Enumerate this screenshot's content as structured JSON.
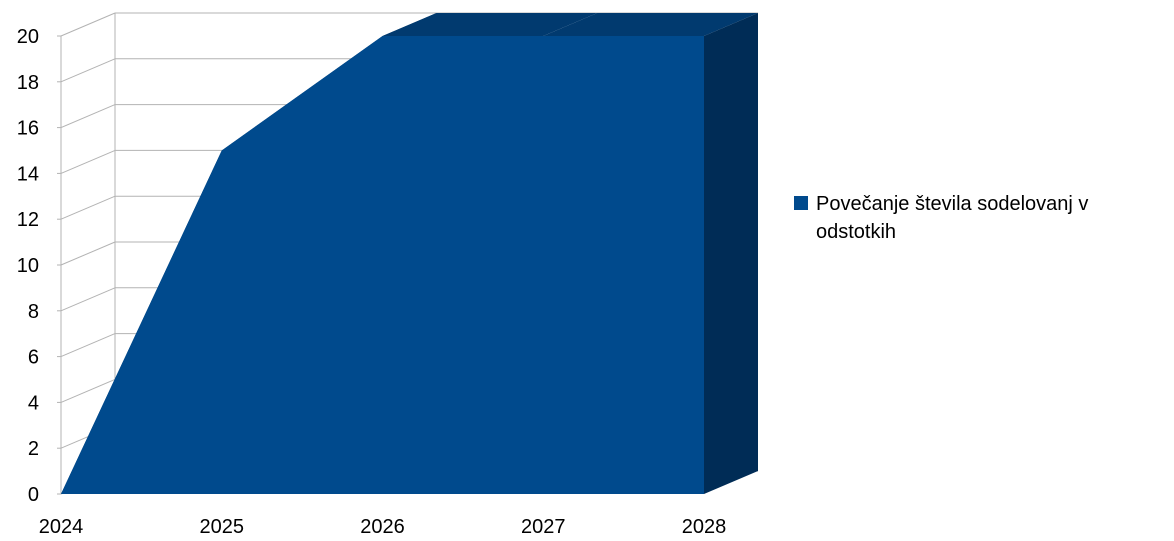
{
  "chart_data": {
    "type": "area",
    "three_d": true,
    "x": [
      "2024",
      "2025",
      "2026",
      "2027",
      "2028"
    ],
    "series": [
      {
        "name": "Povečanje števila sodelovanj v odstotkih",
        "values": [
          0,
          15,
          20,
          20,
          20
        ]
      }
    ],
    "ylim": [
      0,
      20
    ],
    "yticks": [
      "0",
      "2",
      "4",
      "6",
      "8",
      "10",
      "12",
      "14",
      "16",
      "18",
      "20"
    ],
    "grid": true,
    "legend_position": "right",
    "colors": {
      "front": "#004a8d",
      "side": "#002c56",
      "top": "#013a6f",
      "grid": "#b3b3b3"
    }
  }
}
